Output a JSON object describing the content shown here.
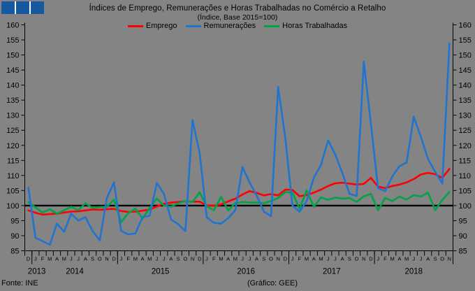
{
  "ui": {
    "logo": {
      "square_count": 3,
      "color": "#15599f"
    },
    "background_color": "#848484"
  },
  "footer": {
    "source": "Fonte: INE",
    "credit": "(Gráfico: GEE)"
  },
  "chart_data": {
    "type": "line",
    "title": "Índices de Emprego, Remunerações e Horas Trabalhadas no Comércio a Retalho",
    "subtitle": "(Índice, Base 2015=100)",
    "ylim": [
      85,
      160
    ],
    "ytick_step": 5,
    "baseline": 100,
    "grid": false,
    "legend_position": "top",
    "x_month_labels": [
      "D",
      "J",
      "F",
      "M",
      "A",
      "M",
      "J",
      "J",
      "A",
      "S",
      "O",
      "N",
      "D",
      "J",
      "F",
      "M",
      "A",
      "M",
      "J",
      "J",
      "A",
      "S",
      "O",
      "N",
      "D",
      "J",
      "F",
      "M",
      "A",
      "M",
      "J",
      "J",
      "A",
      "S",
      "O",
      "N",
      "D",
      "J",
      "F",
      "M",
      "A",
      "M",
      "J",
      "J",
      "A",
      "S",
      "O",
      "N",
      "D",
      "J",
      "F",
      "M",
      "A",
      "M",
      "J",
      "J",
      "A",
      "S",
      "O",
      "N"
    ],
    "x_years": [
      {
        "label": "2013",
        "months": 1
      },
      {
        "label": "2014",
        "months": 12
      },
      {
        "label": "2015",
        "months": 12
      },
      {
        "label": "2016",
        "months": 12
      },
      {
        "label": "2017",
        "months": 12
      },
      {
        "label": "2018",
        "months": 11
      }
    ],
    "series": [
      {
        "name": "Emprego",
        "color": "#fe0000",
        "values": [
          98.4,
          97.6,
          97.0,
          97.2,
          97.3,
          97.7,
          98.0,
          98.1,
          98.4,
          98.7,
          98.6,
          98.8,
          98.9,
          98.2,
          97.9,
          98.0,
          98.3,
          98.7,
          99.7,
          100.6,
          101.0,
          101.2,
          101.4,
          101.3,
          101.3,
          100.1,
          99.9,
          100.4,
          101.4,
          102.3,
          103.7,
          104.8,
          104.2,
          103.4,
          103.8,
          103.4,
          105.3,
          105.2,
          103.1,
          103.5,
          104.3,
          105.3,
          106.5,
          107.4,
          107.6,
          107.3,
          107.0,
          107.2,
          109.2,
          106.3,
          105.8,
          106.5,
          107.0,
          107.7,
          108.8,
          110.3,
          110.9,
          110.4,
          109.2,
          112.2
        ]
      },
      {
        "name": "Remunerações",
        "color": "#1e74ce",
        "values": [
          106.0,
          89.3,
          88.2,
          87.0,
          94.0,
          91.3,
          97.3,
          95.0,
          96.2,
          91.5,
          88.5,
          102.5,
          107.7,
          91.6,
          90.4,
          90.8,
          96.2,
          96.6,
          107.5,
          103.9,
          95.4,
          93.8,
          91.5,
          128.4,
          117.5,
          96.1,
          94.3,
          94.0,
          95.8,
          98.5,
          112.8,
          107.7,
          103.3,
          98.0,
          96.5,
          139.4,
          122.5,
          100.0,
          98.0,
          101.5,
          109.3,
          113.5,
          121.6,
          117.0,
          110.8,
          103.9,
          103.2,
          147.8,
          127.0,
          105.8,
          104.8,
          109.7,
          113.1,
          114.3,
          129.5,
          122.8,
          115.5,
          111.2,
          107.3,
          153.8
        ]
      },
      {
        "name": "Horas Trabalhadas",
        "color": "#00a348",
        "values": [
          101.2,
          99.4,
          97.7,
          98.8,
          97.3,
          98.5,
          99.6,
          98.5,
          100.8,
          99.2,
          99.5,
          99.6,
          102.0,
          94.5,
          97.5,
          99.0,
          95.7,
          99.2,
          102.3,
          100.0,
          99.6,
          100.8,
          101.5,
          101.2,
          104.4,
          99.8,
          98.4,
          102.9,
          98.4,
          100.8,
          101.2,
          101.0,
          101.0,
          100.8,
          101.5,
          102.5,
          104.5,
          104.3,
          99.0,
          105.0,
          99.6,
          102.7,
          101.9,
          102.7,
          102.3,
          102.5,
          101.2,
          103.1,
          103.9,
          98.5,
          102.5,
          101.5,
          103.0,
          102.0,
          103.5,
          103.0,
          104.3,
          98.5,
          101.9,
          104.5
        ]
      }
    ]
  }
}
